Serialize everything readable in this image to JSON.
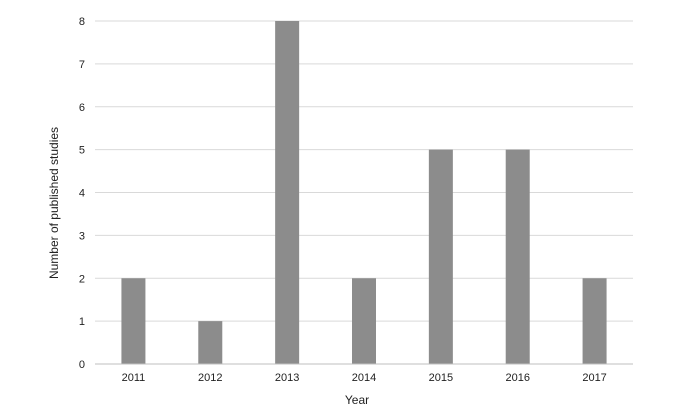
{
  "chart_data": {
    "type": "bar",
    "title": "",
    "xlabel": "Year",
    "ylabel": "Number of published studies",
    "categories": [
      "2011",
      "2012",
      "2013",
      "2014",
      "2015",
      "2016",
      "2017"
    ],
    "values": [
      2,
      1,
      8,
      2,
      5,
      5,
      2
    ],
    "ylim": [
      0,
      8
    ],
    "yticks": [
      0,
      1,
      2,
      3,
      4,
      5,
      6,
      7,
      8
    ],
    "grid": true,
    "legend": "none",
    "colors": {
      "bar": "#8c8c8c",
      "grid": "#d9d9d9",
      "axis": "#bfbfbf",
      "text": "#222222"
    }
  }
}
